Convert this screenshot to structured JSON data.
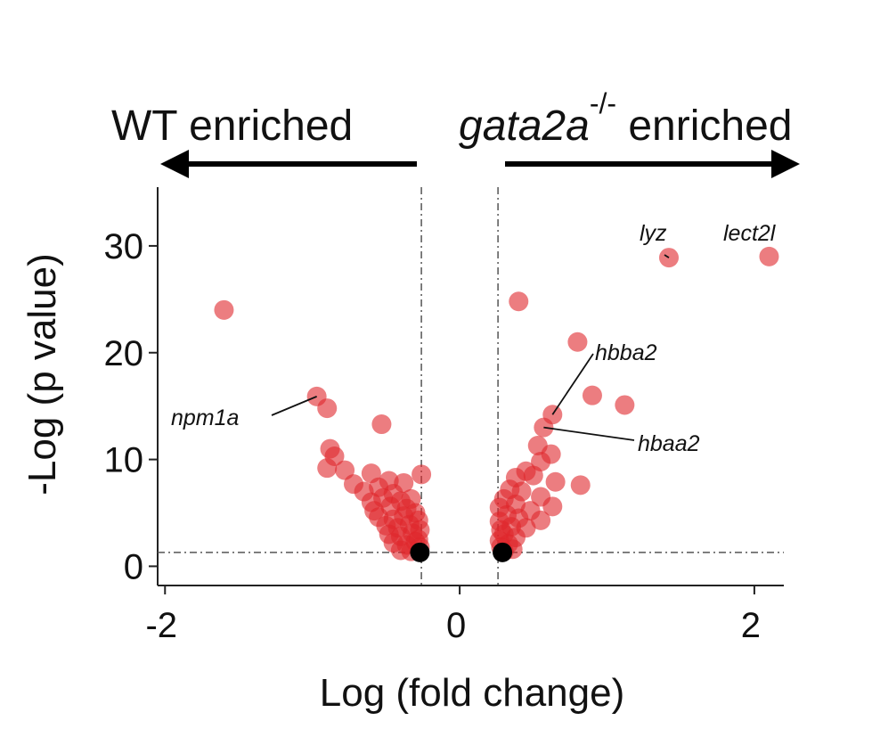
{
  "header": {
    "left_label": "WT enriched",
    "right_label_gene": "gata2a",
    "right_label_superscript": "-/-",
    "right_label_suffix": " enriched"
  },
  "chart_data": {
    "type": "scatter",
    "title": "",
    "xlabel": "Log (fold change)",
    "ylabel": "-Log (p value)",
    "xlim": [
      -2.05,
      2.2
    ],
    "ylim": [
      -1.8,
      35.5
    ],
    "x_ticks": [
      -2,
      0,
      2
    ],
    "x_tick_labels": [
      "-2",
      "0",
      "2"
    ],
    "y_ticks": [
      0,
      10,
      20,
      30
    ],
    "y_tick_labels": [
      "0",
      "10",
      "20",
      "30"
    ],
    "grid": false,
    "legend": "none",
    "point_color": "#e0262c",
    "threshold_point_color": "#000000",
    "thresholds": {
      "x": [
        -0.26,
        0.26
      ],
      "y": 1.3
    },
    "points": [
      {
        "x": -1.6,
        "y": 24.0
      },
      {
        "x": -0.97,
        "y": 15.9
      },
      {
        "x": -0.9,
        "y": 14.8
      },
      {
        "x": -0.53,
        "y": 13.3
      },
      {
        "x": -0.88,
        "y": 11.0
      },
      {
        "x": -0.85,
        "y": 10.3
      },
      {
        "x": -0.9,
        "y": 9.2
      },
      {
        "x": -0.78,
        "y": 9.0
      },
      {
        "x": -0.6,
        "y": 8.7
      },
      {
        "x": -0.26,
        "y": 8.6
      },
      {
        "x": -0.72,
        "y": 7.7
      },
      {
        "x": -0.48,
        "y": 8.0
      },
      {
        "x": -0.65,
        "y": 7.0
      },
      {
        "x": -0.55,
        "y": 7.4
      },
      {
        "x": -0.38,
        "y": 7.8
      },
      {
        "x": -0.45,
        "y": 6.8
      },
      {
        "x": -0.6,
        "y": 6.0
      },
      {
        "x": -0.52,
        "y": 6.4
      },
      {
        "x": -0.4,
        "y": 6.1
      },
      {
        "x": -0.33,
        "y": 6.3
      },
      {
        "x": -0.58,
        "y": 5.2
      },
      {
        "x": -0.47,
        "y": 5.6
      },
      {
        "x": -0.36,
        "y": 5.4
      },
      {
        "x": -0.3,
        "y": 5.0
      },
      {
        "x": -0.55,
        "y": 4.6
      },
      {
        "x": -0.45,
        "y": 4.4
      },
      {
        "x": -0.38,
        "y": 4.7
      },
      {
        "x": -0.28,
        "y": 4.3
      },
      {
        "x": -0.5,
        "y": 3.8
      },
      {
        "x": -0.42,
        "y": 3.6
      },
      {
        "x": -0.34,
        "y": 3.9
      },
      {
        "x": -0.27,
        "y": 3.4
      },
      {
        "x": -0.48,
        "y": 3.0
      },
      {
        "x": -0.4,
        "y": 2.8
      },
      {
        "x": -0.32,
        "y": 3.1
      },
      {
        "x": -0.28,
        "y": 2.5
      },
      {
        "x": -0.45,
        "y": 2.2
      },
      {
        "x": -0.36,
        "y": 2.0
      },
      {
        "x": -0.3,
        "y": 2.3
      },
      {
        "x": -0.27,
        "y": 1.8
      },
      {
        "x": -0.4,
        "y": 1.5
      },
      {
        "x": -0.33,
        "y": 1.4
      },
      {
        "x": 1.42,
        "y": 28.9
      },
      {
        "x": 2.1,
        "y": 29.0
      },
      {
        "x": 0.4,
        "y": 24.8
      },
      {
        "x": 0.8,
        "y": 21.0
      },
      {
        "x": 0.9,
        "y": 16.0
      },
      {
        "x": 1.12,
        "y": 15.1
      },
      {
        "x": 0.63,
        "y": 14.2
      },
      {
        "x": 0.57,
        "y": 13.0
      },
      {
        "x": 0.53,
        "y": 11.3
      },
      {
        "x": 0.62,
        "y": 10.5
      },
      {
        "x": 0.55,
        "y": 9.8
      },
      {
        "x": 0.45,
        "y": 8.9
      },
      {
        "x": 0.38,
        "y": 8.3
      },
      {
        "x": 0.5,
        "y": 8.5
      },
      {
        "x": 0.82,
        "y": 7.6
      },
      {
        "x": 0.65,
        "y": 7.9
      },
      {
        "x": 0.34,
        "y": 7.2
      },
      {
        "x": 0.42,
        "y": 7.0
      },
      {
        "x": 0.55,
        "y": 6.5
      },
      {
        "x": 0.3,
        "y": 6.3
      },
      {
        "x": 0.38,
        "y": 5.8
      },
      {
        "x": 0.27,
        "y": 5.5
      },
      {
        "x": 0.63,
        "y": 5.6
      },
      {
        "x": 0.48,
        "y": 5.2
      },
      {
        "x": 0.32,
        "y": 4.8
      },
      {
        "x": 0.4,
        "y": 4.5
      },
      {
        "x": 0.27,
        "y": 4.2
      },
      {
        "x": 0.55,
        "y": 4.3
      },
      {
        "x": 0.35,
        "y": 3.7
      },
      {
        "x": 0.28,
        "y": 3.4
      },
      {
        "x": 0.45,
        "y": 3.6
      },
      {
        "x": 0.3,
        "y": 3.0
      },
      {
        "x": 0.38,
        "y": 2.7
      },
      {
        "x": 0.27,
        "y": 2.4
      },
      {
        "x": 0.33,
        "y": 2.1
      },
      {
        "x": 0.28,
        "y": 1.8
      },
      {
        "x": 0.36,
        "y": 1.6
      },
      {
        "x": 0.3,
        "y": 1.4
      }
    ],
    "threshold_points": [
      {
        "x": -0.27,
        "y": 1.3
      },
      {
        "x": 0.29,
        "y": 1.3
      }
    ],
    "annotations": [
      {
        "label": "npm1a",
        "x": -0.97,
        "y": 15.9
      },
      {
        "label": "lyz",
        "x": 1.42,
        "y": 28.9
      },
      {
        "label": "lect2l",
        "x": 2.1,
        "y": 29.0
      },
      {
        "label": "hbba2",
        "x": 0.63,
        "y": 14.2
      },
      {
        "label": "hbaa2",
        "x": 0.57,
        "y": 13.0
      }
    ]
  }
}
